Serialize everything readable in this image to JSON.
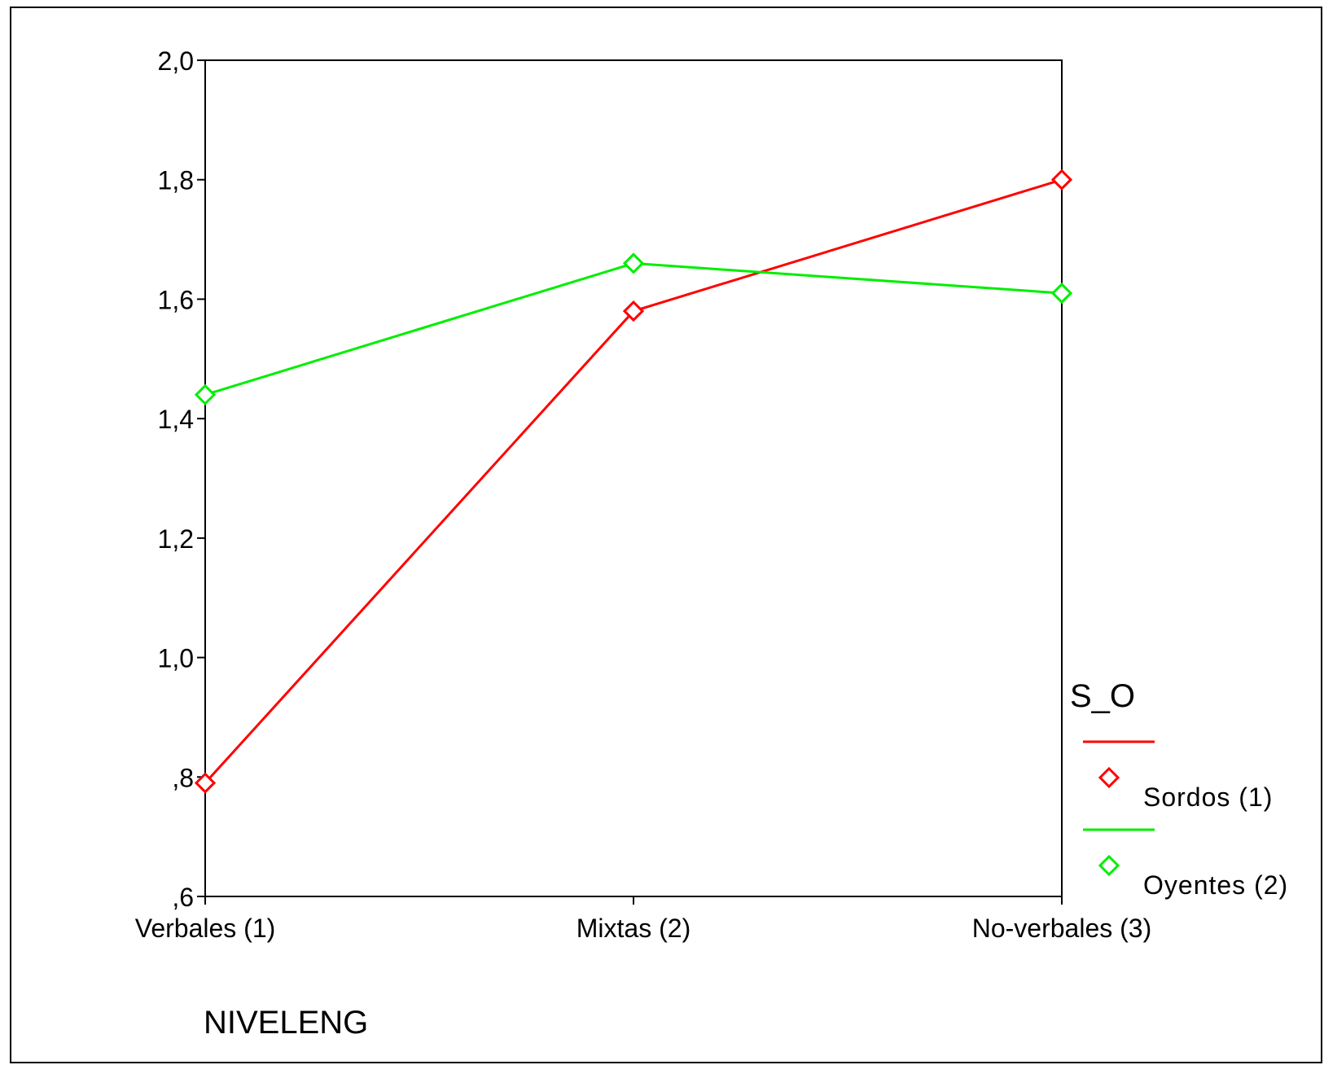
{
  "chart_data": {
    "type": "line",
    "categories": [
      "Verbales (1)",
      "Mixtas (2)",
      "No-verbales (3)"
    ],
    "series": [
      {
        "name": "Sordos (1)",
        "color": "#ff0000",
        "marker": "diamond",
        "values": [
          0.79,
          1.58,
          1.8
        ]
      },
      {
        "name": "Oyentes (2)",
        "color": "#00ee00",
        "marker": "diamond",
        "values": [
          1.44,
          1.66,
          1.61
        ]
      }
    ],
    "xlabel": "NIVELENG",
    "ylabel": "",
    "ylim": [
      0.6,
      2.0
    ],
    "yticks": [
      0.6,
      0.8,
      1.0,
      1.2,
      1.4,
      1.6,
      1.8,
      2.0
    ],
    "ytick_labels": [
      ",6",
      ",8",
      "1,0",
      "1,2",
      "1,4",
      "1,6",
      "1,8",
      "2,0"
    ],
    "legend": {
      "title": "S_O",
      "position": "right"
    },
    "grid": false
  }
}
